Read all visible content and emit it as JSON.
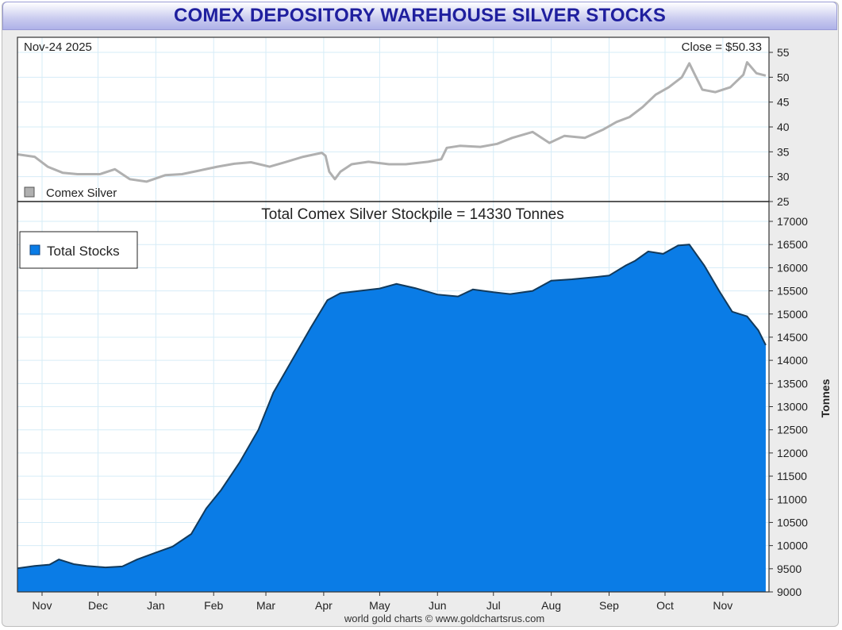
{
  "header": {
    "title": "COMEX DEPOSITORY WAREHOUSE SILVER STOCKS",
    "footer": "world gold charts © www.goldchartsrus.com"
  },
  "chart_data": [
    {
      "type": "line",
      "panel": "price",
      "date_label": "Nov-24  2025",
      "close_label": "Close = $50.33",
      "series": [
        {
          "name": "Comex Silver",
          "color": "#b0b0b0",
          "x": [
            "2024-10-18",
            "2024-10-28",
            "2024-11-04",
            "2024-11-12",
            "2024-11-20",
            "2024-12-02",
            "2024-12-10",
            "2024-12-18",
            "2024-12-27",
            "2025-01-06",
            "2025-01-15",
            "2025-01-24",
            "2025-02-03",
            "2025-02-12",
            "2025-02-21",
            "2025-03-03",
            "2025-03-12",
            "2025-03-21",
            "2025-03-31",
            "2025-04-02",
            "2025-04-04",
            "2025-04-07",
            "2025-04-10",
            "2025-04-16",
            "2025-04-25",
            "2025-05-06",
            "2025-05-15",
            "2025-05-27",
            "2025-06-03",
            "2025-06-06",
            "2025-06-13",
            "2025-06-24",
            "2025-07-03",
            "2025-07-11",
            "2025-07-22",
            "2025-07-31",
            "2025-08-08",
            "2025-08-19",
            "2025-08-29",
            "2025-09-05",
            "2025-09-12",
            "2025-09-19",
            "2025-09-26",
            "2025-10-03",
            "2025-10-10",
            "2025-10-14",
            "2025-10-17",
            "2025-10-21",
            "2025-10-28",
            "2025-11-05",
            "2025-11-12",
            "2025-11-14",
            "2025-11-19",
            "2025-11-24"
          ],
          "values": [
            34.5,
            34.0,
            32.0,
            30.8,
            30.5,
            30.5,
            31.5,
            29.5,
            29.0,
            30.3,
            30.5,
            31.2,
            32.0,
            32.6,
            32.9,
            32.0,
            33.0,
            34.0,
            34.8,
            34.2,
            31.0,
            29.5,
            31.0,
            32.5,
            33.0,
            32.5,
            32.5,
            33.0,
            33.5,
            35.8,
            36.2,
            36.0,
            36.6,
            37.8,
            39.0,
            36.8,
            38.2,
            37.8,
            39.5,
            41.0,
            42.0,
            44.0,
            46.5,
            48.0,
            50.0,
            52.8,
            50.5,
            47.5,
            47.0,
            48.0,
            50.5,
            53.0,
            50.8,
            50.33
          ]
        }
      ],
      "ylim": [
        25,
        57
      ],
      "ytick_labels": [
        "25",
        "30",
        "35",
        "40",
        "45",
        "50",
        "55"
      ]
    },
    {
      "type": "area",
      "panel": "stocks",
      "title": "Total Comex Silver Stockpile = 14330 Tonnes",
      "ylabel": "Tonnes",
      "ylim": [
        9000,
        17200
      ],
      "ytick_labels": [
        "9000",
        "9500",
        "10000",
        "10500",
        "11000",
        "11500",
        "12000",
        "12500",
        "13000",
        "13500",
        "14000",
        "14500",
        "15000",
        "15500",
        "16000",
        "16500",
        "17000"
      ],
      "xtick_labels": [
        "Nov",
        "Dec",
        "Jan",
        "Feb",
        "Mar",
        "Apr",
        "May",
        "Jun",
        "Jul",
        "Aug",
        "Sep",
        "Oct",
        "Nov"
      ],
      "series": [
        {
          "name": "Total Stocks",
          "color": "#0a7ce6",
          "x": [
            "2024-10-18",
            "2024-10-28",
            "2024-11-05",
            "2024-11-10",
            "2024-11-18",
            "2024-11-25",
            "2024-12-05",
            "2024-12-14",
            "2024-12-22",
            "2025-01-01",
            "2025-01-10",
            "2025-01-20",
            "2025-01-28",
            "2025-02-05",
            "2025-02-15",
            "2025-02-25",
            "2025-03-05",
            "2025-03-15",
            "2025-03-25",
            "2025-04-03",
            "2025-04-10",
            "2025-04-20",
            "2025-05-01",
            "2025-05-10",
            "2025-05-20",
            "2025-06-01",
            "2025-06-12",
            "2025-06-20",
            "2025-07-01",
            "2025-07-10",
            "2025-07-22",
            "2025-08-01",
            "2025-08-12",
            "2025-08-25",
            "2025-09-01",
            "2025-09-10",
            "2025-09-15",
            "2025-09-22",
            "2025-09-30",
            "2025-10-08",
            "2025-10-14",
            "2025-10-22",
            "2025-10-30",
            "2025-11-06",
            "2025-11-14",
            "2025-11-20",
            "2025-11-24"
          ],
          "values": [
            9510,
            9560,
            9590,
            9700,
            9600,
            9560,
            9530,
            9550,
            9700,
            9850,
            9980,
            10250,
            10800,
            11200,
            11800,
            12500,
            13300,
            14000,
            14700,
            15300,
            15450,
            15500,
            15550,
            15650,
            15560,
            15420,
            15380,
            15530,
            15470,
            15430,
            15500,
            15720,
            15750,
            15800,
            15830,
            16050,
            16150,
            16350,
            16300,
            16480,
            16500,
            16050,
            15500,
            15050,
            14950,
            14650,
            14330
          ]
        }
      ]
    }
  ]
}
